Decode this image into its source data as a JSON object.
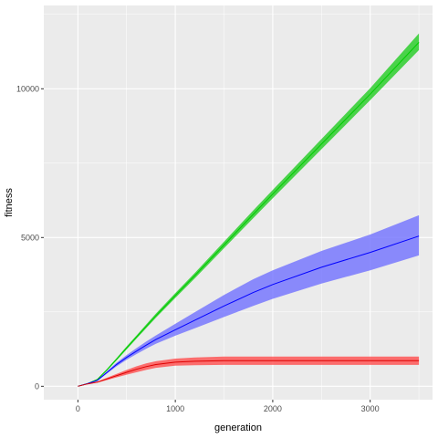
{
  "chart_data": {
    "type": "line",
    "xlabel": "generation",
    "ylabel": "fitness",
    "xlim": [
      -350,
      3640
    ],
    "ylim": [
      -450,
      12800
    ],
    "x_ticks": [
      0,
      1000,
      2000,
      3000
    ],
    "y_ticks": [
      0,
      5000,
      10000
    ],
    "x_tick_labels": [
      "0",
      "1000",
      "2000",
      "3000"
    ],
    "y_tick_labels": [
      "0",
      "5000",
      "10000"
    ],
    "grid": true,
    "panel_background": "#ebebeb",
    "grid_color": "#ffffff",
    "x": [
      0,
      100,
      200,
      300,
      400,
      500,
      600,
      700,
      800,
      1000,
      1200,
      1500,
      1800,
      2000,
      2500,
      3000,
      3500
    ],
    "series": [
      {
        "color": "#00cd00",
        "fill": "#22cc22",
        "values": [
          0,
          90,
          230,
          560,
          920,
          1290,
          1650,
          2010,
          2370,
          3050,
          3720,
          4750,
          5780,
          6460,
          8140,
          9820,
          11560
        ],
        "lower": [
          0,
          80,
          210,
          530,
          880,
          1240,
          1600,
          1950,
          2300,
          2970,
          3630,
          4640,
          5650,
          6320,
          7970,
          9620,
          11300
        ],
        "upper": [
          0,
          100,
          250,
          590,
          960,
          1340,
          1700,
          2070,
          2440,
          3130,
          3810,
          4860,
          5910,
          6600,
          8310,
          10020,
          11860
        ]
      },
      {
        "color": "#0000ff",
        "fill": "#7070ff",
        "values": [
          0,
          90,
          200,
          470,
          740,
          970,
          1180,
          1380,
          1570,
          1900,
          2220,
          2700,
          3150,
          3420,
          4000,
          4500,
          5050
        ],
        "lower": [
          0,
          80,
          180,
          430,
          680,
          890,
          1080,
          1260,
          1430,
          1700,
          1950,
          2330,
          2700,
          2940,
          3450,
          3900,
          4400
        ],
        "upper": [
          0,
          100,
          220,
          510,
          800,
          1050,
          1280,
          1500,
          1710,
          2100,
          2490,
          3070,
          3600,
          3900,
          4550,
          5100,
          5750
        ]
      },
      {
        "color": "#dd0000",
        "fill": "#ff4d4d",
        "values": [
          0,
          80,
          140,
          250,
          360,
          470,
          570,
          660,
          730,
          810,
          840,
          860,
          860,
          860,
          860,
          860,
          860
        ],
        "lower": [
          0,
          70,
          120,
          210,
          300,
          390,
          470,
          550,
          620,
          690,
          710,
          720,
          720,
          720,
          720,
          720,
          720
        ],
        "upper": [
          0,
          90,
          160,
          290,
          420,
          550,
          670,
          770,
          840,
          930,
          970,
          1000,
          1000,
          1000,
          1000,
          1000,
          1000
        ]
      }
    ]
  }
}
